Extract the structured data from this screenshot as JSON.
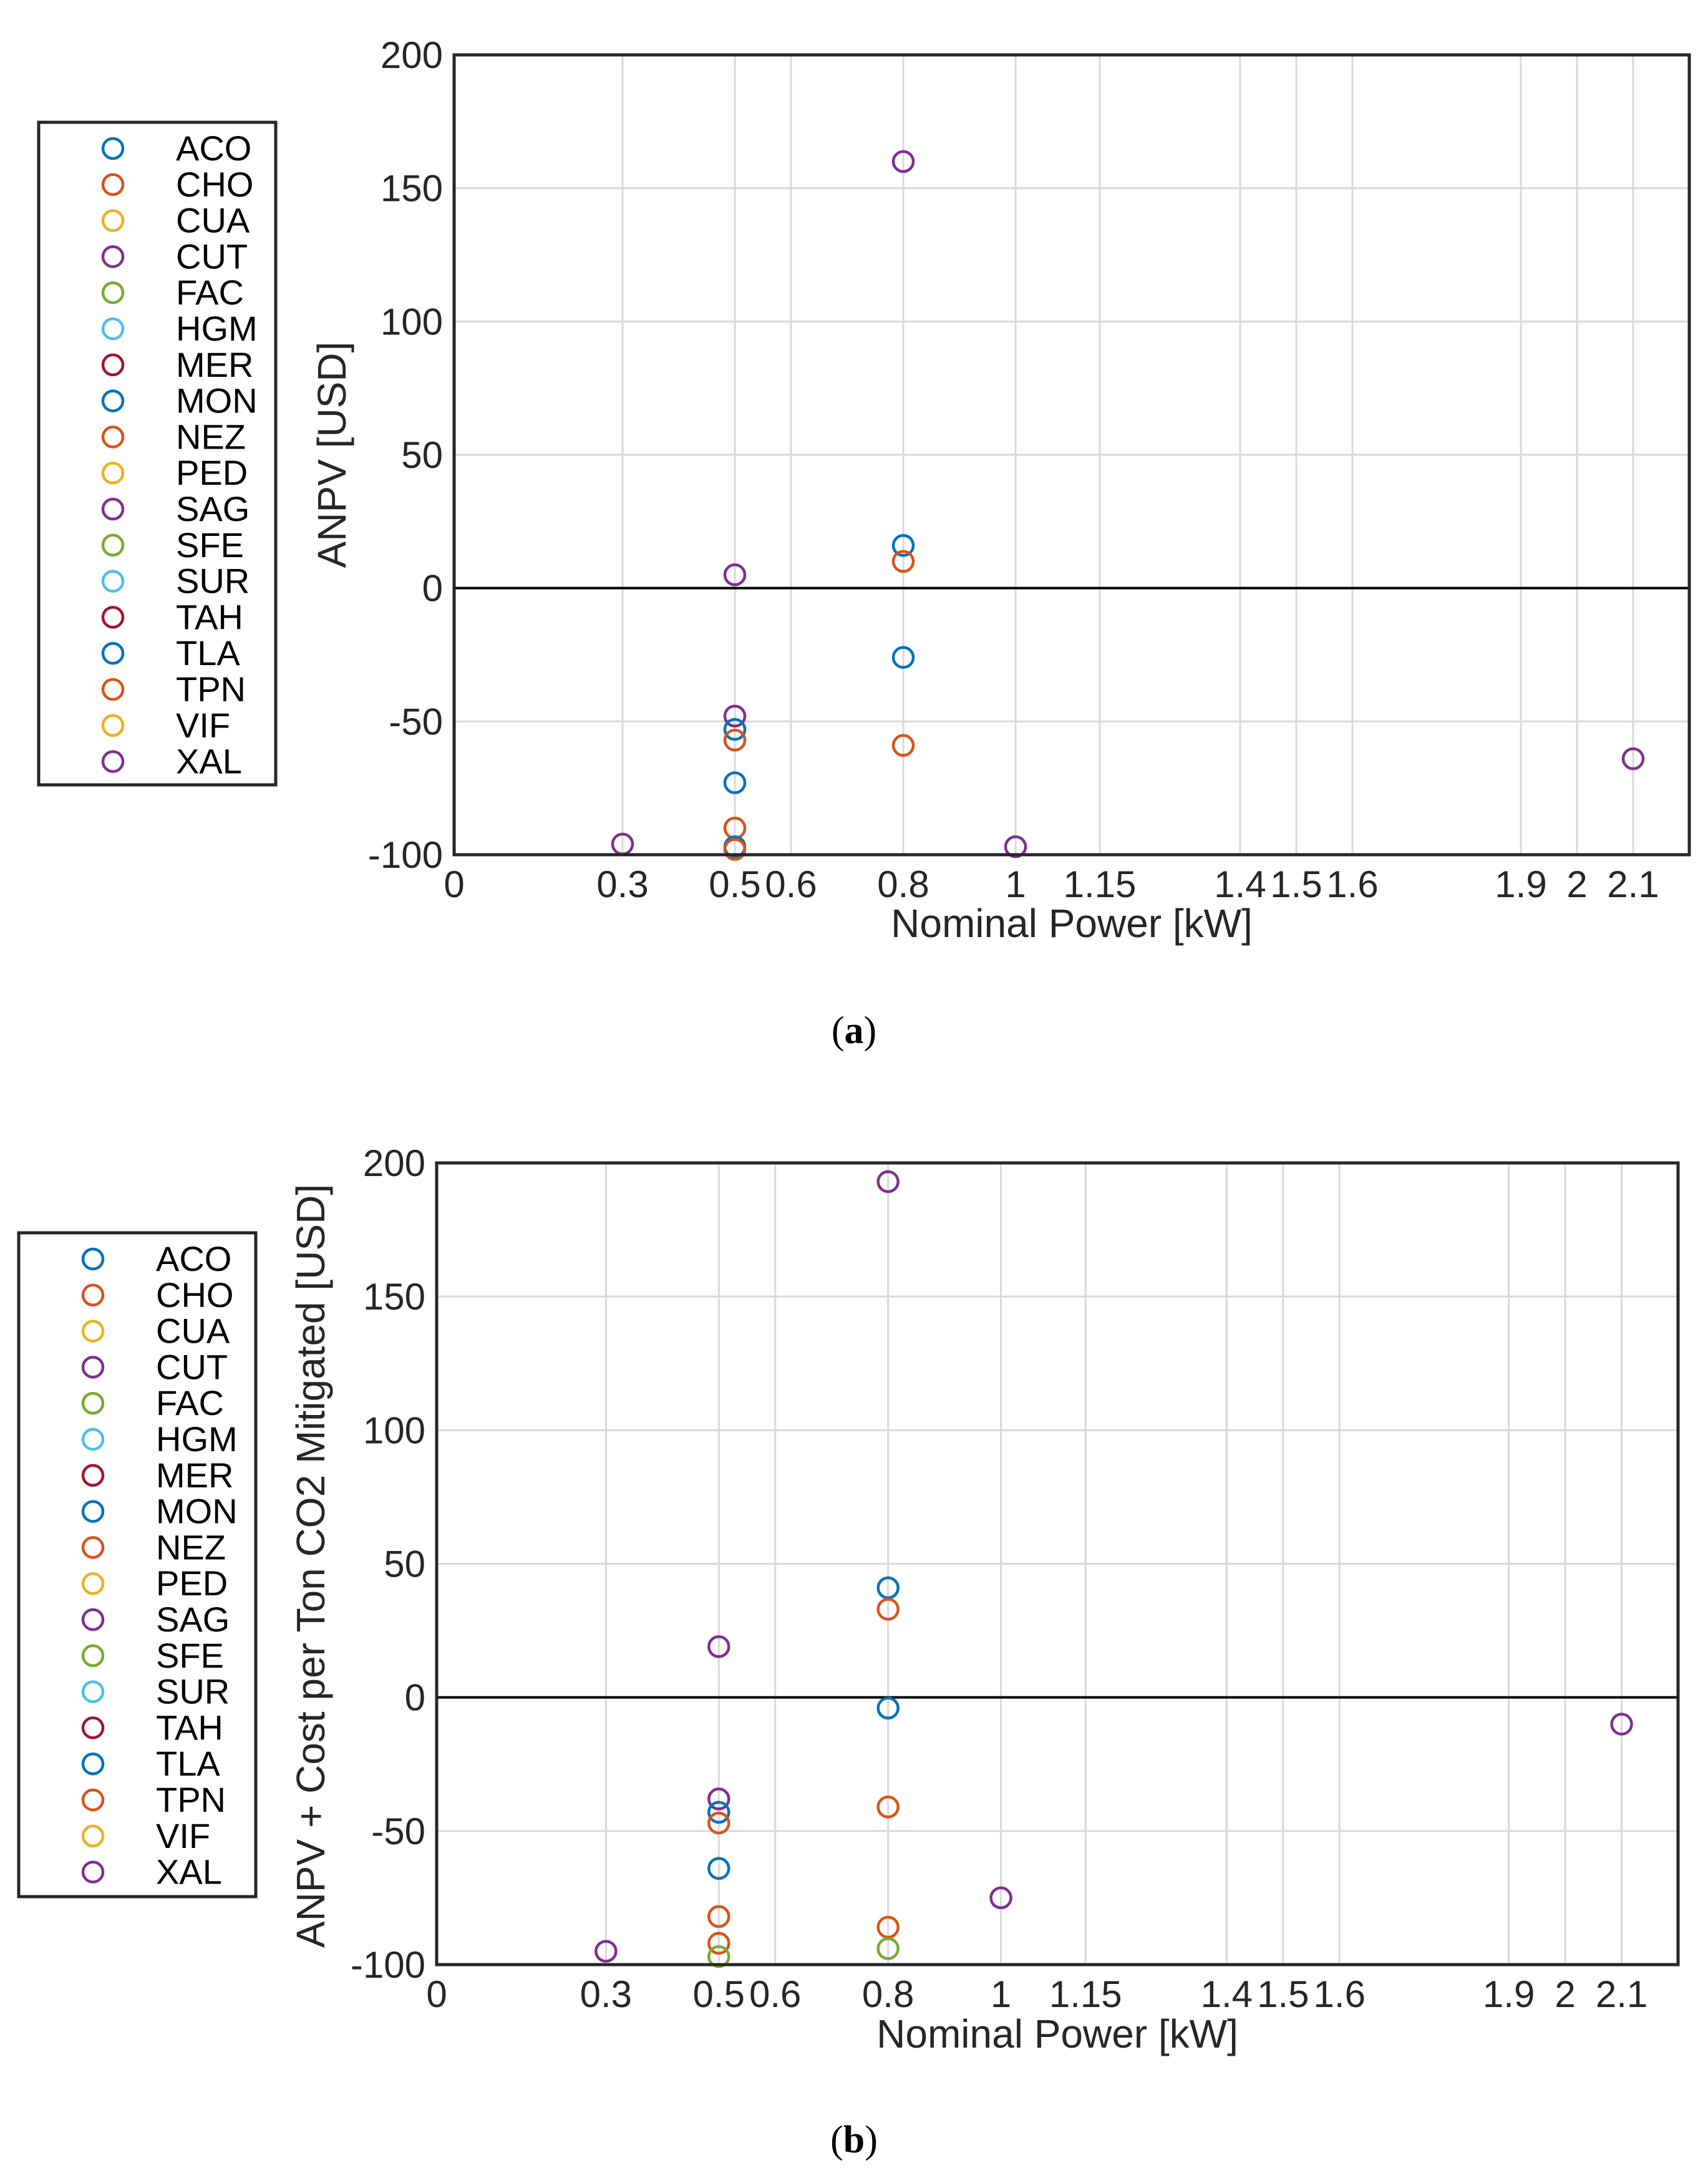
{
  "chart_data": [
    {
      "panel": "a",
      "caption_prefix": "(",
      "caption_letter": "a",
      "caption_suffix": ")",
      "type": "scatter",
      "xlabel": "Nominal Power [kW]",
      "ylabel": "ANPV [USD]",
      "xlim": [
        0,
        2.2
      ],
      "ylim": [
        -100,
        200
      ],
      "xticks": [
        0,
        0.3,
        0.5,
        0.6,
        0.8,
        1,
        1.15,
        1.4,
        1.5,
        1.6,
        1.9,
        2,
        2.1
      ],
      "xtick_labels": [
        "0",
        "0.3",
        "0.5",
        "0.6",
        "0.8",
        "1",
        "1.15",
        "1.4",
        "1.5",
        "1.6",
        "1.9",
        "2",
        "2.1"
      ],
      "yticks": [
        -100,
        -50,
        0,
        50,
        100,
        150,
        200
      ],
      "ytick_labels": [
        "-100",
        "-50",
        "0",
        "50",
        "100",
        "150",
        "200"
      ],
      "grid": true,
      "zero_line": true,
      "legend_position": "left-outside",
      "points": [
        {
          "x": 0.3,
          "y": -96,
          "series": "CUT"
        },
        {
          "x": 0.5,
          "y": 5,
          "series": "SAG"
        },
        {
          "x": 0.5,
          "y": -48,
          "series": "XAL"
        },
        {
          "x": 0.5,
          "y": -53,
          "series": "MON"
        },
        {
          "x": 0.5,
          "y": -57,
          "series": "NEZ"
        },
        {
          "x": 0.5,
          "y": -73,
          "series": "TLA"
        },
        {
          "x": 0.5,
          "y": -90,
          "series": "TPN"
        },
        {
          "x": 0.5,
          "y": -97,
          "series": "ACO"
        },
        {
          "x": 0.5,
          "y": -98,
          "series": "CHO"
        },
        {
          "x": 0.8,
          "y": 160,
          "series": "SAG"
        },
        {
          "x": 0.8,
          "y": 16,
          "series": "MON"
        },
        {
          "x": 0.8,
          "y": 10,
          "series": "NEZ"
        },
        {
          "x": 0.8,
          "y": -26,
          "series": "TLA"
        },
        {
          "x": 0.8,
          "y": -59,
          "series": "TPN"
        },
        {
          "x": 1.0,
          "y": -97,
          "series": "XAL"
        },
        {
          "x": 2.1,
          "y": -64,
          "series": "CUT"
        }
      ]
    },
    {
      "panel": "b",
      "caption_prefix": "(",
      "caption_letter": "b",
      "caption_suffix": ")",
      "type": "scatter",
      "xlabel": "Nominal Power [kW]",
      "ylabel": "ANPV + Cost per Ton CO2 Mitigated [USD]",
      "xlim": [
        0,
        2.2
      ],
      "ylim": [
        -100,
        200
      ],
      "xticks": [
        0,
        0.3,
        0.5,
        0.6,
        0.8,
        1,
        1.15,
        1.4,
        1.5,
        1.6,
        1.9,
        2,
        2.1
      ],
      "xtick_labels": [
        "0",
        "0.3",
        "0.5",
        "0.6",
        "0.8",
        "1",
        "1.15",
        "1.4",
        "1.5",
        "1.6",
        "1.9",
        "2",
        "2.1"
      ],
      "yticks": [
        -100,
        -50,
        0,
        50,
        100,
        150,
        200
      ],
      "ytick_labels": [
        "-100",
        "-50",
        "0",
        "50",
        "100",
        "150",
        "200"
      ],
      "grid": true,
      "zero_line": true,
      "legend_position": "left-outside",
      "points": [
        {
          "x": 0.3,
          "y": -95,
          "series": "CUT"
        },
        {
          "x": 0.5,
          "y": 19,
          "series": "SAG"
        },
        {
          "x": 0.5,
          "y": -38,
          "series": "XAL"
        },
        {
          "x": 0.5,
          "y": -43,
          "series": "MON"
        },
        {
          "x": 0.5,
          "y": -47,
          "series": "NEZ"
        },
        {
          "x": 0.5,
          "y": -64,
          "series": "TLA"
        },
        {
          "x": 0.5,
          "y": -82,
          "series": "TPN"
        },
        {
          "x": 0.5,
          "y": -92,
          "series": "CHO"
        },
        {
          "x": 0.5,
          "y": -97,
          "series": "FAC"
        },
        {
          "x": 0.8,
          "y": 193,
          "series": "SAG"
        },
        {
          "x": 0.8,
          "y": 41,
          "series": "MON"
        },
        {
          "x": 0.8,
          "y": 33,
          "series": "NEZ"
        },
        {
          "x": 0.8,
          "y": -4,
          "series": "TLA"
        },
        {
          "x": 0.8,
          "y": -41,
          "series": "TPN"
        },
        {
          "x": 0.8,
          "y": -86,
          "series": "CHO"
        },
        {
          "x": 0.8,
          "y": -94,
          "series": "SFE"
        },
        {
          "x": 1.0,
          "y": -75,
          "series": "XAL"
        },
        {
          "x": 2.1,
          "y": -10,
          "series": "CUT"
        }
      ]
    }
  ],
  "legend": [
    {
      "name": "ACO",
      "color": "#0072BD"
    },
    {
      "name": "CHO",
      "color": "#D95319"
    },
    {
      "name": "CUA",
      "color": "#EDB120"
    },
    {
      "name": "CUT",
      "color": "#7E2F8E"
    },
    {
      "name": "FAC",
      "color": "#77AC30"
    },
    {
      "name": "HGM",
      "color": "#4DBEEE"
    },
    {
      "name": "MER",
      "color": "#A2142F"
    },
    {
      "name": "MON",
      "color": "#0072BD"
    },
    {
      "name": "NEZ",
      "color": "#D95319"
    },
    {
      "name": "PED",
      "color": "#EDB120"
    },
    {
      "name": "SAG",
      "color": "#7E2F8E"
    },
    {
      "name": "SFE",
      "color": "#77AC30"
    },
    {
      "name": "SUR",
      "color": "#4DBEEE"
    },
    {
      "name": "TAH",
      "color": "#A2142F"
    },
    {
      "name": "TLA",
      "color": "#0072BD"
    },
    {
      "name": "TPN",
      "color": "#D95319"
    },
    {
      "name": "VIF",
      "color": "#EDB120"
    },
    {
      "name": "XAL",
      "color": "#7E2F8E"
    }
  ]
}
